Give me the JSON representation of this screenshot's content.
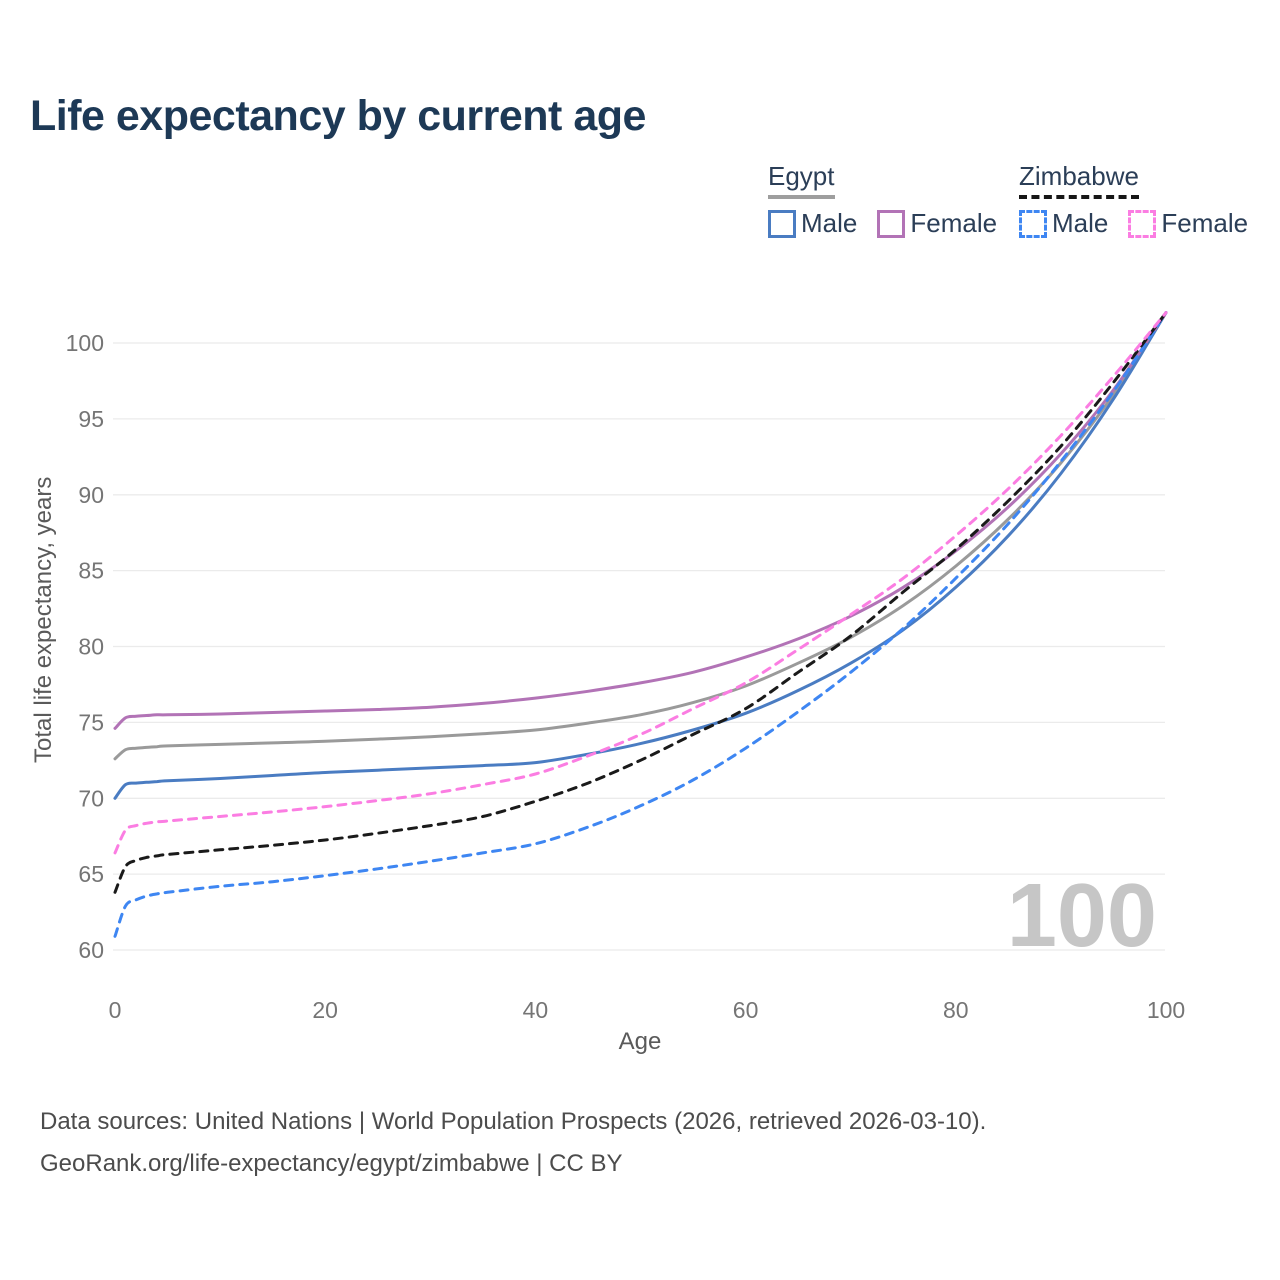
{
  "title": "Life expectancy by current age",
  "legend": {
    "groups": [
      {
        "label": "Egypt",
        "line_style": "solid",
        "underline_color": "#9e9e9e",
        "items": [
          {
            "label": "Male",
            "color": "#4a7cc2",
            "dashed": false
          },
          {
            "label": "Female",
            "color": "#b273b6",
            "dashed": false
          }
        ]
      },
      {
        "label": "Zimbabwe",
        "line_style": "dashed",
        "underline_color": "#161616",
        "items": [
          {
            "label": "Male",
            "color": "#3e86f2",
            "dashed": true
          },
          {
            "label": "Female",
            "color": "#fb7de2",
            "dashed": true
          }
        ]
      }
    ]
  },
  "chart_data": {
    "type": "line",
    "title": "Life expectancy by current age",
    "xlabel": "Age",
    "ylabel": "Total life expectancy, years",
    "xlim": [
      0,
      100
    ],
    "ylim": [
      58,
      103
    ],
    "x_ticks": [
      0,
      20,
      40,
      60,
      80,
      100
    ],
    "y_ticks": [
      60,
      65,
      70,
      75,
      80,
      85,
      90,
      95,
      100
    ],
    "grid": "horizontal",
    "legend_position": "top-right",
    "watermark": "100",
    "x": [
      0,
      1,
      2,
      3,
      4,
      5,
      10,
      15,
      20,
      25,
      30,
      35,
      40,
      45,
      50,
      55,
      60,
      65,
      70,
      75,
      80,
      85,
      90,
      95,
      100
    ],
    "series": [
      {
        "name": "Egypt Both sexes",
        "country": "Egypt",
        "sex": "Both",
        "color": "#9a9a9a",
        "dashed": false,
        "values": [
          72.6,
          73.2,
          73.3,
          73.35,
          73.4,
          73.45,
          73.55,
          73.65,
          73.75,
          73.9,
          74.05,
          74.25,
          74.5,
          74.95,
          75.5,
          76.3,
          77.4,
          78.9,
          80.6,
          82.7,
          85.3,
          88.4,
          92.1,
          96.6,
          102
        ]
      },
      {
        "name": "Egypt Male",
        "country": "Egypt",
        "sex": "Male",
        "color": "#4a7cc2",
        "dashed": false,
        "values": [
          70.0,
          70.9,
          71.0,
          71.05,
          71.1,
          71.15,
          71.3,
          71.5,
          71.7,
          71.85,
          72.0,
          72.15,
          72.35,
          72.9,
          73.6,
          74.5,
          75.6,
          77.1,
          78.9,
          81.1,
          83.9,
          87.3,
          91.4,
          96.3,
          102
        ]
      },
      {
        "name": "Egypt Female",
        "country": "Egypt",
        "sex": "Female",
        "color": "#b273b6",
        "dashed": false,
        "values": [
          74.6,
          75.3,
          75.4,
          75.45,
          75.5,
          75.5,
          75.55,
          75.65,
          75.75,
          75.85,
          76.0,
          76.25,
          76.6,
          77.05,
          77.6,
          78.3,
          79.3,
          80.5,
          82.0,
          83.9,
          86.3,
          89.2,
          92.7,
          96.9,
          102
        ]
      },
      {
        "name": "Zimbabwe Male",
        "country": "Zimbabwe",
        "sex": "Male",
        "color": "#3e86f2",
        "dashed": true,
        "values": [
          60.9,
          62.9,
          63.3,
          63.55,
          63.7,
          63.8,
          64.2,
          64.5,
          64.9,
          65.35,
          65.85,
          66.4,
          67.0,
          68.1,
          69.5,
          71.2,
          73.3,
          75.7,
          78.3,
          81.2,
          84.5,
          88.1,
          92.2,
          96.8,
          102
        ]
      },
      {
        "name": "Zimbabwe Both sexes",
        "country": "Zimbabwe",
        "sex": "Both",
        "color": "#1a1a1a",
        "dashed": true,
        "values": [
          63.8,
          65.5,
          65.9,
          66.1,
          66.2,
          66.3,
          66.6,
          66.9,
          67.25,
          67.7,
          68.2,
          68.8,
          69.8,
          71.0,
          72.5,
          74.2,
          75.9,
          78.3,
          80.7,
          83.6,
          86.4,
          89.6,
          93.2,
          97.4,
          102
        ]
      },
      {
        "name": "Zimbabwe Female",
        "country": "Zimbabwe",
        "sex": "Female",
        "color": "#fb7de2",
        "dashed": true,
        "values": [
          66.4,
          67.9,
          68.2,
          68.35,
          68.45,
          68.5,
          68.8,
          69.1,
          69.45,
          69.85,
          70.3,
          70.9,
          71.6,
          72.8,
          74.2,
          75.9,
          77.6,
          79.8,
          82.1,
          84.5,
          87.3,
          90.4,
          93.9,
          97.8,
          102
        ]
      }
    ],
    "end_labels": [
      {
        "flag": "zimbabwe",
        "series": "Zimbabwe Both sexes",
        "value": "102",
        "color": "#2b2b2b"
      },
      {
        "flag": "zimbabwe",
        "series": "Zimbabwe Female",
        "value": "102",
        "color": "#fb7de2"
      },
      {
        "flag": "zimbabwe",
        "series": "Zimbabwe Male",
        "value": "102",
        "color": "#3e86f2"
      },
      {
        "flag": "egypt",
        "series": "Egypt Both sexes",
        "value": "102",
        "color": "#a3a3a3"
      },
      {
        "flag": "egypt",
        "series": "Egypt Male",
        "value": "102",
        "color": "#4a7cc2"
      },
      {
        "flag": "egypt",
        "series": "Egypt Female",
        "value": "102",
        "color": "#b273b6"
      }
    ]
  },
  "footer": {
    "line1": "Data sources: United Nations | World Population Prospects (2026, retrieved 2026-03-10).",
    "line2": "GeoRank.org/life-expectancy/egypt/zimbabwe | CC BY"
  }
}
